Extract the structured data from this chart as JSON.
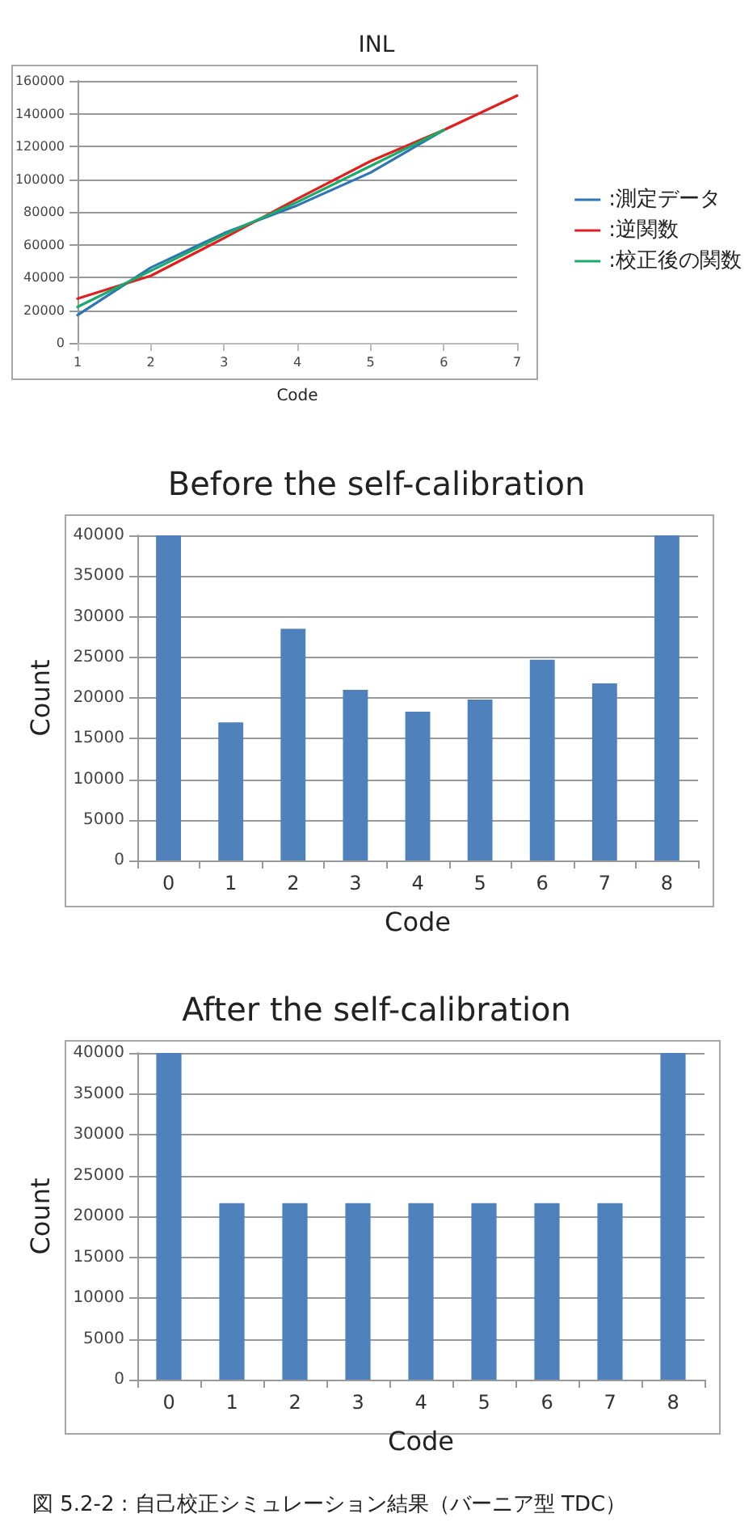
{
  "chart_data": [
    {
      "type": "line",
      "title": "INL",
      "xlabel": "Code",
      "x": [
        1,
        2,
        3,
        4,
        5,
        6,
        7
      ],
      "xlim": [
        1,
        7
      ],
      "xticks": [
        1,
        2,
        3,
        4,
        5,
        6,
        7
      ],
      "ylim": [
        0,
        160000
      ],
      "yticks": [
        0,
        20000,
        40000,
        60000,
        80000,
        100000,
        120000,
        140000,
        160000
      ],
      "grid": "y",
      "legend": "right",
      "marker": "none",
      "line_style": "solid",
      "series": [
        {
          "name": ":測定データ",
          "color": "#2e75b6",
          "values": [
            17000,
            46000,
            67000,
            84000,
            104000,
            130000,
            null
          ]
        },
        {
          "name": ":逆関数",
          "color": "#e02020",
          "values": [
            27000,
            41000,
            64000,
            88000,
            111000,
            130000,
            151000
          ]
        },
        {
          "name": ":校正後の関数",
          "color": "#1aaa6a",
          "values": [
            22000,
            44000,
            66000,
            86000,
            108000,
            130000,
            null
          ]
        }
      ]
    },
    {
      "type": "bar",
      "title": "Before the self-calibration",
      "xlabel": "Code",
      "ylabel": "Count",
      "categories": [
        "0",
        "1",
        "2",
        "3",
        "4",
        "5",
        "6",
        "7",
        "8"
      ],
      "values": [
        40000,
        17000,
        28500,
        21000,
        18300,
        19800,
        24700,
        21800,
        40000
      ],
      "color": "#4f81bd",
      "ylim": [
        0,
        40000
      ],
      "yticks": [
        0,
        5000,
        10000,
        15000,
        20000,
        25000,
        30000,
        35000,
        40000
      ],
      "grid": "y",
      "legend": false
    },
    {
      "type": "bar",
      "title": "After the self-calibration",
      "xlabel": "Code",
      "ylabel": "Count",
      "categories": [
        "0",
        "1",
        "2",
        "3",
        "4",
        "5",
        "6",
        "7",
        "8"
      ],
      "values": [
        40000,
        21600,
        21600,
        21600,
        21600,
        21600,
        21600,
        21600,
        40000
      ],
      "color": "#4f81bd",
      "ylim": [
        0,
        40000
      ],
      "yticks": [
        0,
        5000,
        10000,
        15000,
        20000,
        25000,
        30000,
        35000,
        40000
      ],
      "grid": "y",
      "legend": false,
      "annotations": [
        "図 5.2-2 : 自己校正シミュレーション結果（バーニア型 TDC）"
      ]
    }
  ]
}
